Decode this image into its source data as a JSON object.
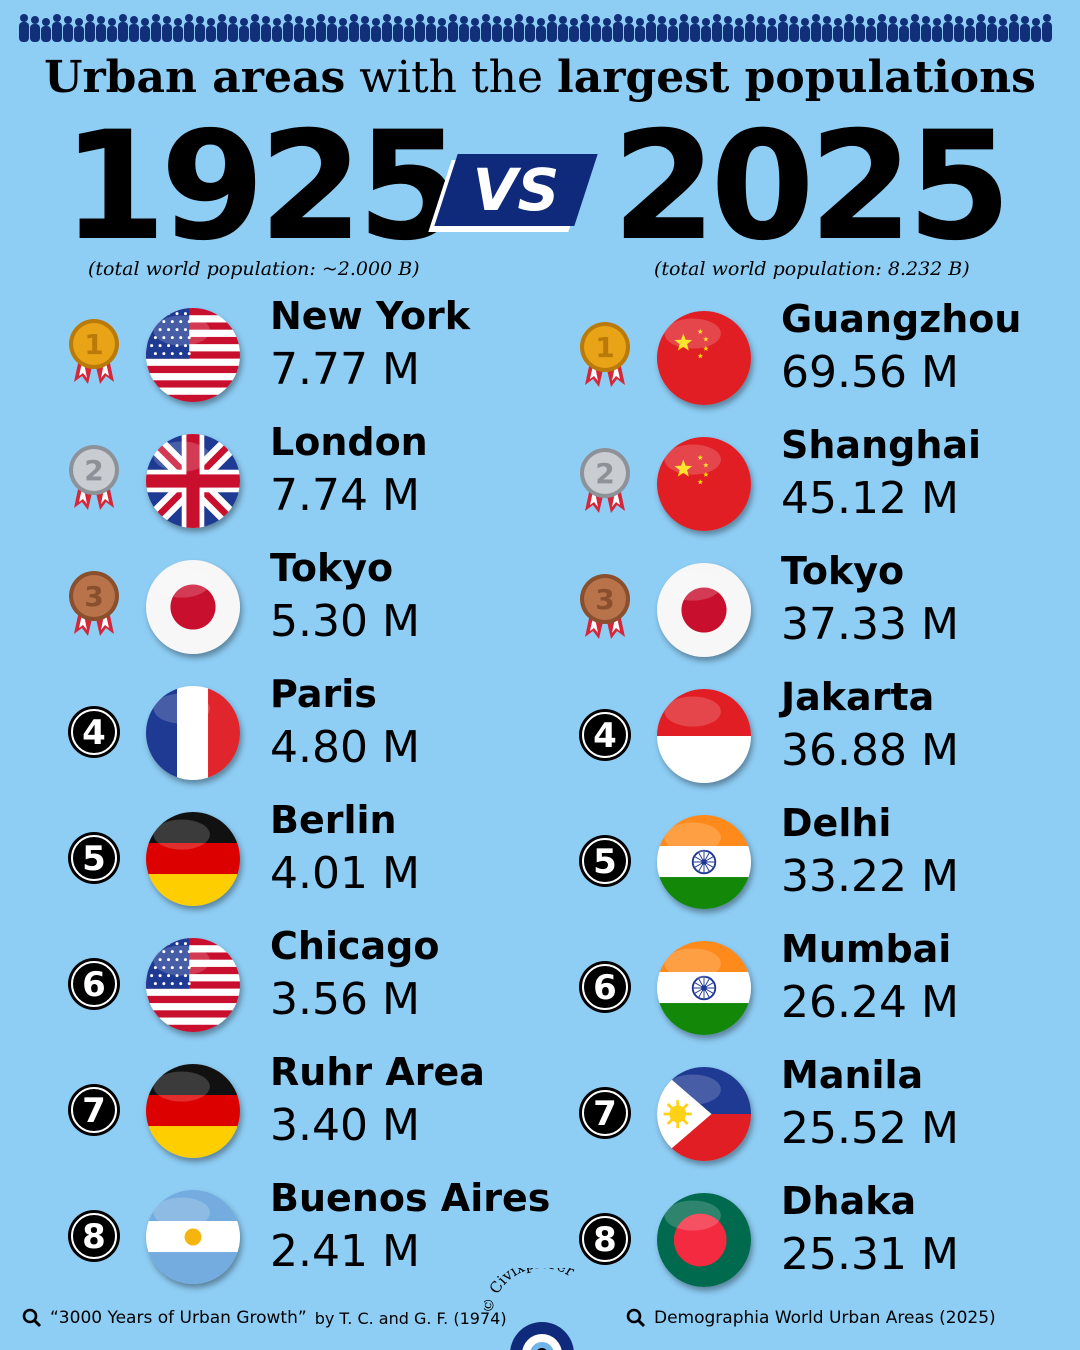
{
  "title": {
    "part1": "Urban areas",
    "part2": "with the",
    "part3": "largest populations"
  },
  "year_left": "1925",
  "year_right": "2025",
  "vs_label": "VS",
  "sub_left": "(total world population: ~2.000 B)",
  "sub_right": "(total world population: 8.232 B)",
  "list_1925": [
    {
      "rank": "1",
      "city": "New York",
      "pop": "7.77 M",
      "flag": "usa-flag-icon"
    },
    {
      "rank": "2",
      "city": "London",
      "pop": "7.74 M",
      "flag": "uk-flag-icon"
    },
    {
      "rank": "3",
      "city": "Tokyo",
      "pop": "5.30 M",
      "flag": "japan-flag-icon"
    },
    {
      "rank": "4",
      "city": "Paris",
      "pop": "4.80 M",
      "flag": "france-flag-icon"
    },
    {
      "rank": "5",
      "city": "Berlin",
      "pop": "4.01 M",
      "flag": "germany-flag-icon"
    },
    {
      "rank": "6",
      "city": "Chicago",
      "pop": "3.56 M",
      "flag": "usa-flag-icon"
    },
    {
      "rank": "7",
      "city": "Ruhr Area",
      "pop": "3.40 M",
      "flag": "germany-flag-icon"
    },
    {
      "rank": "8",
      "city": "Buenos Aires",
      "pop": "2.41 M",
      "flag": "argentina-flag-icon"
    }
  ],
  "list_2025": [
    {
      "rank": "1",
      "city": "Guangzhou",
      "pop": "69.56 M",
      "flag": "china-flag-icon"
    },
    {
      "rank": "2",
      "city": "Shanghai",
      "pop": "45.12 M",
      "flag": "china-flag-icon"
    },
    {
      "rank": "3",
      "city": "Tokyo",
      "pop": "37.33 M",
      "flag": "japan-flag-icon"
    },
    {
      "rank": "4",
      "city": "Jakarta",
      "pop": "36.88 M",
      "flag": "indonesia-flag-icon"
    },
    {
      "rank": "5",
      "city": "Delhi",
      "pop": "33.22 M",
      "flag": "india-flag-icon"
    },
    {
      "rank": "6",
      "city": "Mumbai",
      "pop": "26.24 M",
      "flag": "india-flag-icon"
    },
    {
      "rank": "7",
      "city": "Manila",
      "pop": "25.52 M",
      "flag": "philippines-flag-icon"
    },
    {
      "rank": "8",
      "city": "Dhaka",
      "pop": "25.31 M",
      "flag": "bangladesh-flag-icon"
    }
  ],
  "footer_left": {
    "title": "“3000 Years of Urban Growth”",
    "credit": "by T. C. and G. F. (1974)"
  },
  "footer_right": "Demographia World Urban Areas (2025)",
  "logo_text": "© Civixplorer",
  "colors": {
    "background": "#8ecdf4",
    "navy": "#0f2a7a",
    "gold": "#e8a317",
    "silver": "#c9ccd1",
    "bronze": "#b8734a",
    "crowd": "#12307a"
  }
}
